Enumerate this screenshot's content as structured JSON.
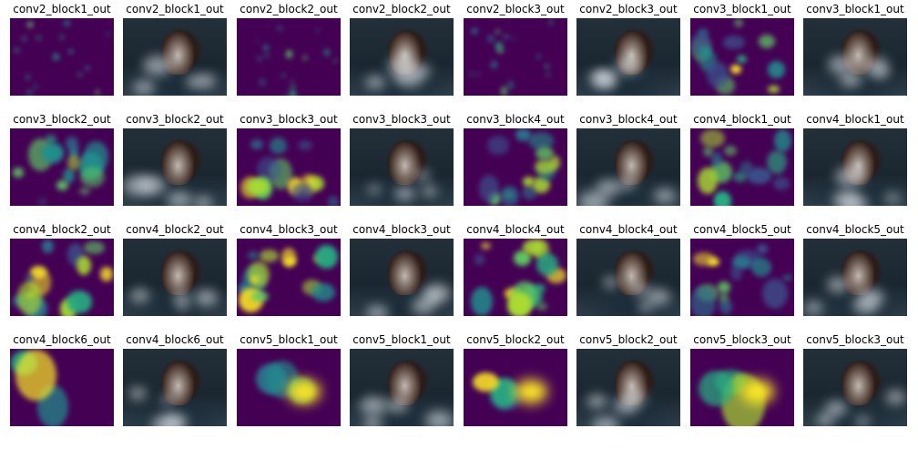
{
  "figure": {
    "panels": [
      {
        "title": "conv2_block1_out",
        "kind": "heatmap"
      },
      {
        "title": "conv2_block1_out",
        "kind": "overlay"
      },
      {
        "title": "conv2_block2_out",
        "kind": "heatmap"
      },
      {
        "title": "conv2_block2_out",
        "kind": "overlay"
      },
      {
        "title": "conv2_block3_out",
        "kind": "heatmap"
      },
      {
        "title": "conv2_block3_out",
        "kind": "overlay"
      },
      {
        "title": "conv3_block1_out",
        "kind": "heatmap"
      },
      {
        "title": "conv3_block1_out",
        "kind": "overlay"
      },
      {
        "title": "conv3_block2_out",
        "kind": "heatmap"
      },
      {
        "title": "conv3_block2_out",
        "kind": "overlay"
      },
      {
        "title": "conv3_block3_out",
        "kind": "heatmap"
      },
      {
        "title": "conv3_block3_out",
        "kind": "overlay"
      },
      {
        "title": "conv3_block4_out",
        "kind": "heatmap"
      },
      {
        "title": "conv3_block4_out",
        "kind": "overlay"
      },
      {
        "title": "conv4_block1_out",
        "kind": "heatmap"
      },
      {
        "title": "conv4_block1_out",
        "kind": "overlay"
      },
      {
        "title": "conv4_block2_out",
        "kind": "heatmap"
      },
      {
        "title": "conv4_block2_out",
        "kind": "overlay"
      },
      {
        "title": "conv4_block3_out",
        "kind": "heatmap"
      },
      {
        "title": "conv4_block3_out",
        "kind": "overlay"
      },
      {
        "title": "conv4_block4_out",
        "kind": "heatmap"
      },
      {
        "title": "conv4_block4_out",
        "kind": "overlay"
      },
      {
        "title": "conv4_block5_out",
        "kind": "heatmap"
      },
      {
        "title": "conv4_block5_out",
        "kind": "overlay"
      },
      {
        "title": "conv4_block6_out",
        "kind": "heatmap"
      },
      {
        "title": "conv4_block6_out",
        "kind": "overlay"
      },
      {
        "title": "conv5_block1_out",
        "kind": "heatmap"
      },
      {
        "title": "conv5_block1_out",
        "kind": "overlay"
      },
      {
        "title": "conv5_block2_out",
        "kind": "heatmap"
      },
      {
        "title": "conv5_block2_out",
        "kind": "overlay"
      },
      {
        "title": "conv5_block3_out",
        "kind": "heatmap"
      },
      {
        "title": "conv5_block3_out",
        "kind": "overlay"
      }
    ]
  },
  "colors": {
    "viridis_low": "#440154",
    "viridis_mid": "#21908d",
    "viridis_high": "#fde725",
    "background": "#ffffff"
  }
}
